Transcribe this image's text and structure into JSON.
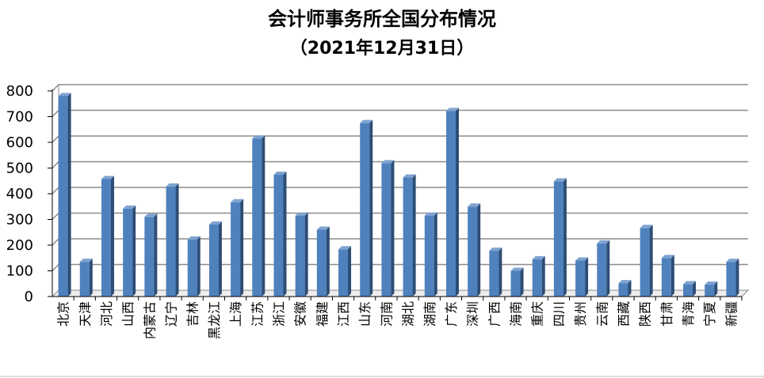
{
  "chart_data": {
    "type": "bar",
    "title": "会计师事务所全国分布情况",
    "subtitle": "（2021年12月31日）",
    "xlabel": "",
    "ylabel": "",
    "ylim": [
      0,
      800
    ],
    "yticks": [
      0,
      100,
      200,
      300,
      400,
      500,
      600,
      700,
      800
    ],
    "grid": true,
    "legend": "none",
    "colors": {
      "bar": "#4F81BD",
      "bar_dark": "#2C4D75",
      "bar_light": "#7FA3D1",
      "grid": "#8C8C8C",
      "axis": "#000000"
    },
    "categories": [
      "北京",
      "天津",
      "河北",
      "山西",
      "内蒙古",
      "辽宁",
      "吉林",
      "黑龙江",
      "上海",
      "江苏",
      "浙江",
      "安徽",
      "福建",
      "江西",
      "山东",
      "河南",
      "湖北",
      "湖南",
      "广东",
      "深圳",
      "广西",
      "海南",
      "重庆",
      "四川",
      "贵州",
      "云南",
      "西藏",
      "陕西",
      "甘肃",
      "青海",
      "宁夏",
      "新疆"
    ],
    "values": [
      780,
      135,
      457,
      342,
      310,
      428,
      222,
      280,
      367,
      615,
      474,
      315,
      260,
      184,
      675,
      519,
      463,
      315,
      722,
      350,
      178,
      100,
      145,
      448,
      140,
      207,
      52,
      267,
      150,
      48,
      46,
      135
    ]
  }
}
